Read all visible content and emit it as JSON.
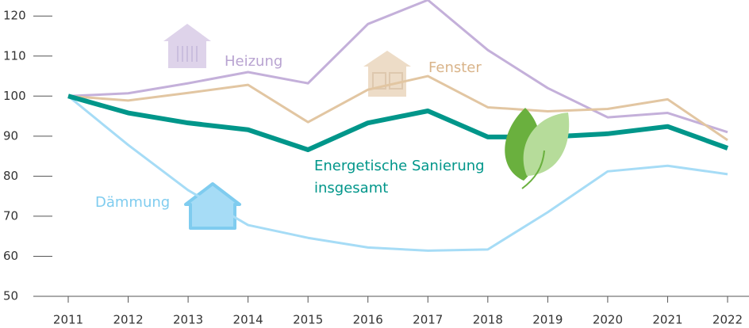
{
  "chart_data": {
    "type": "line",
    "categories": [
      "2011",
      "2012",
      "2013",
      "2014",
      "2015",
      "2016",
      "2017",
      "2018",
      "2019",
      "2020",
      "2021",
      "2022"
    ],
    "series": [
      {
        "name": "Heizung",
        "color": "#c4b0da",
        "values": [
          100,
          100.7,
          103.2,
          106,
          103.2,
          118,
          124,
          111.5,
          102,
          94.7,
          95.8,
          91
        ]
      },
      {
        "name": "Fenster",
        "color": "#e2c6a2",
        "values": [
          100,
          98.9,
          100.8,
          102.8,
          93.5,
          101.6,
          105,
          97.2,
          96.2,
          96.8,
          99.2,
          89
        ]
      },
      {
        "name": "Dämmung",
        "color": "#a6dcf6",
        "values": [
          100,
          87.8,
          76.5,
          67.8,
          64.6,
          62.2,
          61.4,
          61.7,
          71,
          81.2,
          82.6,
          80.5
        ]
      },
      {
        "name": "Energetische Sanierung insgesamt",
        "color": "#00968a",
        "values": [
          100,
          95.8,
          93.3,
          91.6,
          86.6,
          93.3,
          96.3,
          89.8,
          89.8,
          90.6,
          92.4,
          87
        ]
      }
    ],
    "ylim": [
      50,
      124
    ],
    "yticks": [
      50,
      60,
      70,
      80,
      90,
      100,
      110,
      120
    ],
    "grid": true
  }
}
